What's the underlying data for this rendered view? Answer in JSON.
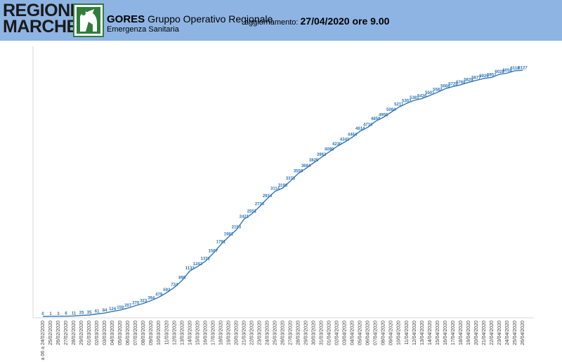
{
  "header": {
    "logo_line1": "REGIONE",
    "logo_line2": "MARCHE",
    "org_short": "GORES",
    "org_long_1": "Gruppo Operativo Regionale",
    "org_long_2": "Emergenza Sanitaria",
    "update_label": "aggiornamento:",
    "update_value": "27/04/2020 ore 9.00",
    "background_color": "#8eb4e3"
  },
  "chart_data": {
    "type": "line",
    "line_color": "#2e75b6",
    "label_color": "#2e75b6",
    "grid": false,
    "legend": "none",
    "categories": [
      "a 06 a 24/02/2020",
      "25/02/2020",
      "26/02/2020",
      "27/02/2020",
      "28/02/2020",
      "29/02/2020",
      "01/03/2020",
      "02/03/2020",
      "03/03/2020",
      "04/03/2020",
      "05/03/2020",
      "06/03/2020",
      "07/03/2020",
      "08/03/2020",
      "09/03/2020",
      "10/03/2020",
      "11/03/2020",
      "12/03/2020",
      "13/03/2020",
      "14/03/2020",
      "15/03/2020",
      "16/03/2020",
      "17/03/2020",
      "18/03/2020",
      "19/03/2020",
      "20/03/2020",
      "21/03/2020",
      "22/03/2020",
      "23/03/2020",
      "24/03/2020",
      "25/03/2020",
      "26/03/2020",
      "27/03/2020",
      "28/03/2020",
      "29/03/2020",
      "30/03/2020",
      "31/03/2020",
      "01/04/2020",
      "02/04/2020",
      "03/04/2020",
      "04/04/2020",
      "05/04/2020",
      "06/04/2020",
      "07/04/2020",
      "08/04/2020",
      "09/04/2020",
      "10/04/2020",
      "11/04/2020",
      "12/04/2020",
      "13/04/2020",
      "14/04/2020",
      "15/04/2020",
      "16/04/2020",
      "17/04/2020",
      "18/04/2020",
      "19/04/2020",
      "20/04/2020",
      "21/04/2020",
      "22/04/2020",
      "23/04/2020",
      "24/04/2020",
      "25/04/2020",
      "26/04/2020"
    ],
    "values": [
      0,
      1,
      3,
      6,
      11,
      25,
      35,
      61,
      84,
      124,
      159,
      207,
      270,
      323,
      394,
      479,
      592,
      724,
      898,
      1133,
      1242,
      1371,
      1567,
      1791,
      1981,
      2153,
      2421,
      2551,
      2736,
      2934,
      3114,
      3196,
      3373,
      3558,
      3684,
      3825,
      3962,
      4098,
      4230,
      4341,
      4464,
      4614,
      4710,
      4859,
      4955,
      5084,
      5211,
      5303,
      5381,
      5426,
      5501,
      5582,
      5668,
      5725,
      5768,
      5828,
      5877,
      5926,
      5951,
      6028,
      6058,
      6118,
      6127
    ],
    "ylim": [
      0,
      6900
    ]
  }
}
